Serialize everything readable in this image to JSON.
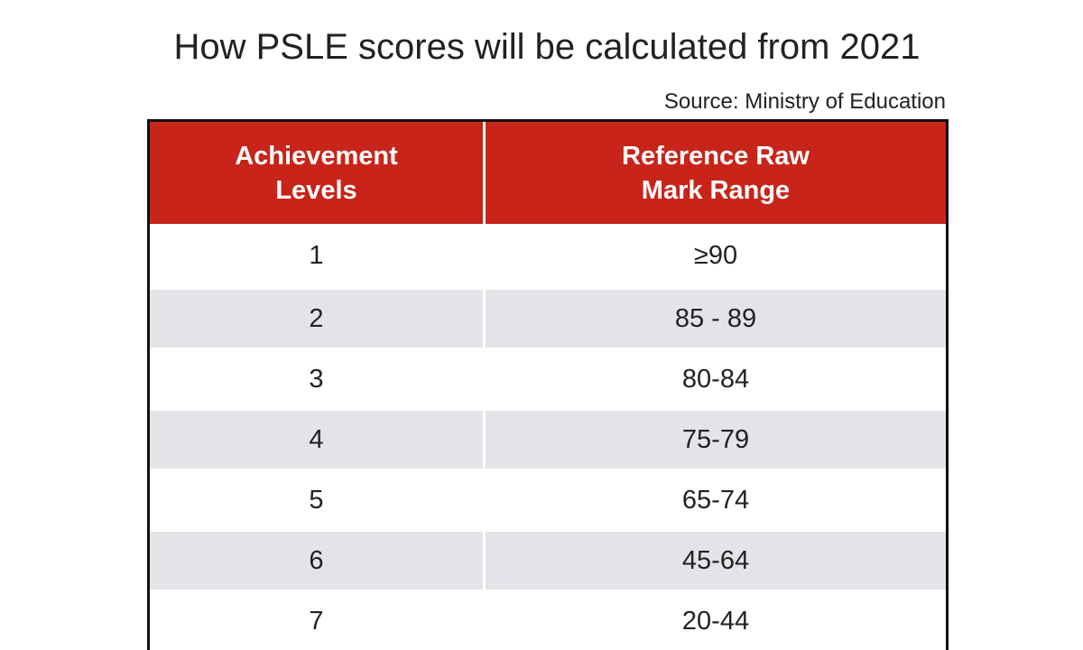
{
  "title": "How PSLE scores will be calculated from 2021",
  "source": "Source: Ministry of Education",
  "colors": {
    "header_bg": "#c8241a",
    "stripe": "#e3e4e8"
  },
  "table": {
    "headers": [
      "Achievement Levels",
      "Reference Raw Mark Range"
    ],
    "rows": [
      {
        "level": "1",
        "range": "≥90"
      },
      {
        "level": "2",
        "range": "85 - 89"
      },
      {
        "level": "3",
        "range": "80-84"
      },
      {
        "level": "4",
        "range": "75-79"
      },
      {
        "level": "5",
        "range": "65-74"
      },
      {
        "level": "6",
        "range": "45-64"
      },
      {
        "level": "7",
        "range": "20-44"
      }
    ]
  }
}
